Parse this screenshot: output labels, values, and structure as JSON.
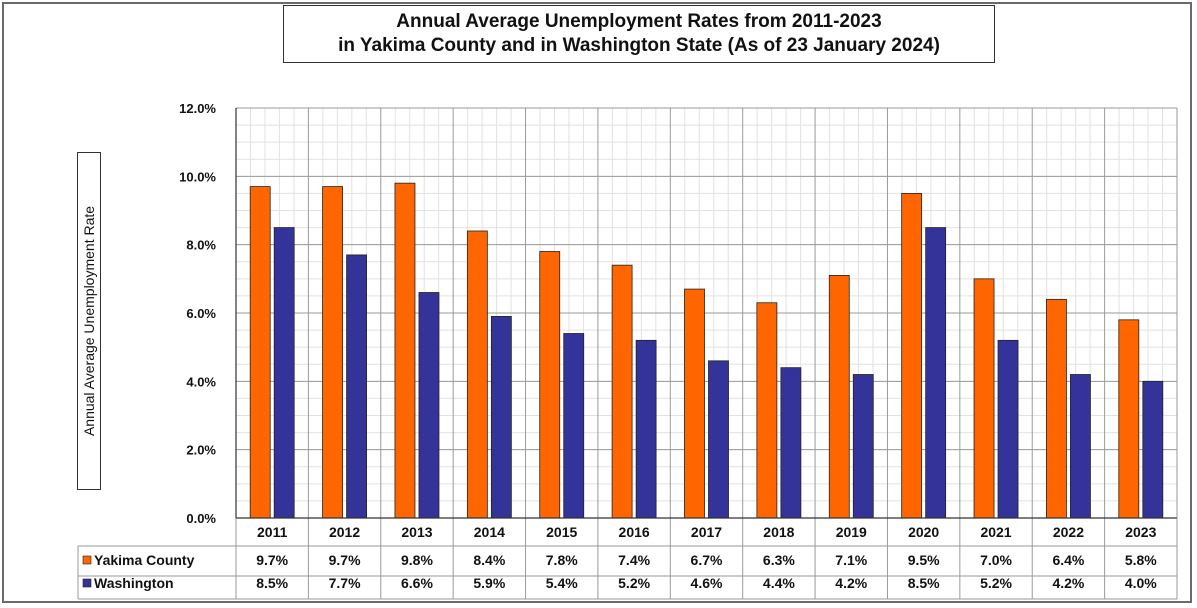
{
  "chart_data": {
    "type": "bar",
    "title_line1": "Annual Average Unemployment Rates from 2011-2023",
    "title_line2": "in Yakima County and in Washington State (As of 23 January 2024)",
    "ylabel": "Annual Average Unemployment Rate",
    "xlabel": "",
    "ylim": [
      0,
      12
    ],
    "yticks": [
      "0.0%",
      "2.0%",
      "4.0%",
      "6.0%",
      "8.0%",
      "10.0%",
      "12.0%"
    ],
    "grid": true,
    "legend": "data-table",
    "categories": [
      "2011",
      "2012",
      "2013",
      "2014",
      "2015",
      "2016",
      "2017",
      "2018",
      "2019",
      "2020",
      "2021",
      "2022",
      "2023"
    ],
    "series": [
      {
        "name": "Yakima County",
        "color": "#ff6600",
        "values": [
          9.7,
          9.7,
          9.8,
          8.4,
          7.8,
          7.4,
          6.7,
          6.3,
          7.1,
          9.5,
          7.0,
          6.4,
          5.8
        ],
        "labels": [
          "9.7%",
          "9.7%",
          "9.8%",
          "8.4%",
          "7.8%",
          "7.4%",
          "6.7%",
          "6.3%",
          "7.1%",
          "9.5%",
          "7.0%",
          "6.4%",
          "5.8%"
        ]
      },
      {
        "name": "Washington",
        "color": "#333399",
        "values": [
          8.5,
          7.7,
          6.6,
          5.9,
          5.4,
          5.2,
          4.6,
          4.4,
          4.2,
          8.5,
          5.2,
          4.2,
          4.0
        ],
        "labels": [
          "8.5%",
          "7.7%",
          "6.6%",
          "5.9%",
          "5.4%",
          "5.2%",
          "4.6%",
          "4.4%",
          "4.2%",
          "8.5%",
          "5.2%",
          "4.2%",
          "4.0%"
        ]
      }
    ]
  }
}
